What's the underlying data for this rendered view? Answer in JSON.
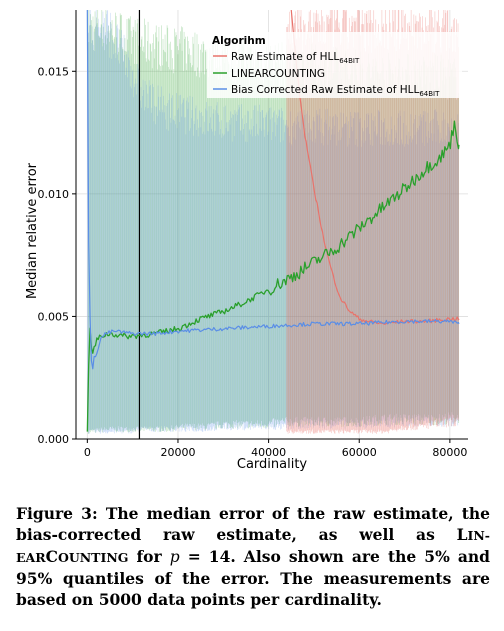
{
  "chart_data": {
    "type": "line",
    "title": "",
    "xlabel": "Cardinality",
    "ylabel": "Median relative error",
    "xlim": [
      -2500,
      84000
    ],
    "ylim": [
      0,
      0.0175
    ],
    "xticks": [
      0,
      20000,
      40000,
      60000,
      80000
    ],
    "xtick_labels": [
      "0",
      "20000",
      "40000",
      "60000",
      "80000"
    ],
    "yticks": [
      0.0,
      0.005,
      0.01,
      0.015
    ],
    "ytick_labels": [
      "0.000",
      "0.005",
      "0.010",
      "0.015"
    ],
    "grid": true,
    "vertical_line_x": 11500,
    "legend": {
      "title": "Algorihm",
      "placement": "top-right",
      "entries": [
        {
          "name": "Raw Estimate of HLL",
          "sub": "64BIT",
          "color": "#e8736b"
        },
        {
          "name": "LINEARCOUNTING",
          "color": "#2aa02c"
        },
        {
          "name": "Bias Corrected Raw Estimate of HLL",
          "sub": "64BIT",
          "color": "#5a8ee6"
        }
      ]
    },
    "series": [
      {
        "name": "Raw Estimate of HLL64BIT",
        "color": "#e8736b",
        "x": [
          45000,
          46000,
          47000,
          48000,
          49000,
          50000,
          51000,
          52000,
          53000,
          54000,
          55000,
          56000,
          58000,
          60000,
          62000,
          65000,
          70000,
          75000,
          80000,
          82000
        ],
        "y": [
          0.0175,
          0.0155,
          0.0138,
          0.0124,
          0.0113,
          0.0102,
          0.0093,
          0.0083,
          0.0075,
          0.0068,
          0.0062,
          0.0057,
          0.0052,
          0.0049,
          0.0048,
          0.0047,
          0.0048,
          0.0048,
          0.0049,
          0.0049
        ],
        "band": {
          "x_start": 44000,
          "x_end": 82000,
          "lower": [
            0.0003,
            0.0003,
            0.0003,
            0.0003,
            0.0003,
            0.0003,
            0.0003,
            0.0003,
            0.0003,
            0.0003,
            0.0003,
            0.0003,
            0.0004,
            0.0005,
            0.0005,
            0.0005,
            0.0006,
            0.0006,
            0.0007,
            0.0007
          ],
          "upper": [
            0.0175,
            0.0175,
            0.0175,
            0.0175,
            0.0175,
            0.0175,
            0.0175,
            0.0175,
            0.0175,
            0.0175,
            0.0175,
            0.0175,
            0.0175,
            0.0175,
            0.0175,
            0.0175,
            0.0175,
            0.0175,
            0.0175,
            0.0175
          ]
        }
      },
      {
        "name": "LINEARCOUNTING",
        "color": "#2aa02c",
        "x": [
          0,
          500,
          1000,
          2000,
          3000,
          5000,
          8000,
          10000,
          15000,
          20000,
          25000,
          30000,
          35000,
          40000,
          45000,
          50000,
          55000,
          60000,
          65000,
          70000,
          75000,
          78000,
          80000,
          81000,
          82000
        ],
        "y": [
          0.0003,
          0.0048,
          0.0034,
          0.004,
          0.0042,
          0.0043,
          0.0042,
          0.0042,
          0.0043,
          0.0045,
          0.0049,
          0.0052,
          0.0056,
          0.0061,
          0.0066,
          0.0072,
          0.0078,
          0.0086,
          0.0094,
          0.0102,
          0.0111,
          0.0115,
          0.012,
          0.0129,
          0.012
        ],
        "band": {
          "x_start": 200,
          "x_end": 82000,
          "lower": [
            0.0003,
            0.0004,
            0.0004,
            0.0004,
            0.0004,
            0.0005,
            0.0005,
            0.0006,
            0.0006,
            0.0006,
            0.0007,
            0.0007,
            0.0007,
            0.0007,
            0.0007,
            0.0008,
            0.0008,
            0.0008,
            0.0008,
            0.0009
          ],
          "upper": [
            0.0175,
            0.0175,
            0.017,
            0.0168,
            0.0166,
            0.0165,
            0.0163,
            0.0162,
            0.016,
            0.016,
            0.0159,
            0.0158,
            0.0158,
            0.0157,
            0.0156,
            0.0155,
            0.0155,
            0.0154,
            0.0154,
            0.0153
          ]
        }
      },
      {
        "name": "Bias Corrected Raw Estimate of HLL64BIT",
        "color": "#5a8ee6",
        "x": [
          0,
          300,
          600,
          1000,
          1500,
          2000,
          3000,
          4000,
          6000,
          10000,
          15000,
          20000,
          30000,
          40000,
          50000,
          60000,
          70000,
          80000,
          82000
        ],
        "y": [
          0.0175,
          0.008,
          0.005,
          0.0025,
          0.0033,
          0.0035,
          0.0041,
          0.0043,
          0.0044,
          0.0043,
          0.0043,
          0.0044,
          0.0045,
          0.0046,
          0.0047,
          0.0047,
          0.0048,
          0.0048,
          0.0047
        ],
        "band": {
          "x_start": 0,
          "x_end": 82000,
          "lower": [
            0.0003,
            0.0003,
            0.0003,
            0.0004,
            0.0004,
            0.0004,
            0.0004,
            0.0005,
            0.0005,
            0.0005,
            0.0005,
            0.0006,
            0.0006,
            0.0006,
            0.0006,
            0.0006,
            0.0007,
            0.0007,
            0.0007,
            0.0007
          ],
          "upper": [
            0.0175,
            0.0175,
            0.016,
            0.0145,
            0.014,
            0.0138,
            0.0136,
            0.0135,
            0.0134,
            0.0134,
            0.0133,
            0.0133,
            0.0133,
            0.0132,
            0.0132,
            0.0132,
            0.0132,
            0.0132,
            0.0132,
            0.0132
          ]
        }
      }
    ]
  },
  "caption": {
    "label": "Figure 3:",
    "part1": "The median error of the raw estimate, the bias-corrected raw estimate, as well as",
    "lc_first": "L",
    "lc_small1": "IN-",
    "lc_small2": "EAR",
    "lc_c": "C",
    "lc_small3": "OUNTING",
    "part2": "for",
    "math": "p",
    "part3": "= 14.  Also shown are the 5% and 95% quantiles of the error.  The measurements are based on 5000 data points per cardinality."
  }
}
